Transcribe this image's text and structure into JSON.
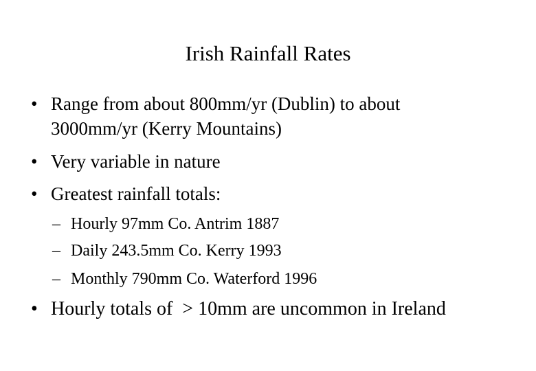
{
  "slide": {
    "title": "Irish Rainfall Rates",
    "bullets": [
      {
        "marker": "•",
        "lines": [
          "Range from about 800mm/yr (Dublin) to about",
          "3000mm/yr (Kerry Mountains)"
        ]
      },
      {
        "marker": "•",
        "lines": [
          "Very variable in nature"
        ]
      },
      {
        "marker": "•",
        "lines": [
          "Greatest rainfall totals:"
        ],
        "sub": [
          {
            "marker": "–",
            "text": "Hourly 97mm Co. Antrim 1887"
          },
          {
            "marker": "–",
            "text": "Daily 243.5mm Co. Kerry 1993"
          },
          {
            "marker": "–",
            "text": "Monthly 790mm Co. Waterford 1996"
          }
        ]
      },
      {
        "marker": "•",
        "lines": [
          "Hourly totals of  > 10mm are uncommon in Ireland"
        ]
      }
    ]
  }
}
